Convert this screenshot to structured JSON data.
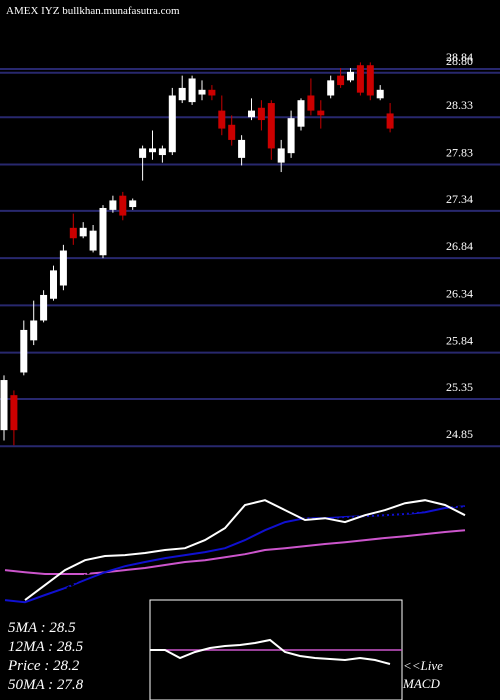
{
  "chart_data": [
    {
      "type": "candlestick",
      "title": "AMEX IYZ bullkhan.munafasutra.com",
      "up_color": "#ffffff",
      "down_color": "#cc0000",
      "grid": true,
      "grid_color": "#28286e",
      "ylim": [
        24.81,
        29.57
      ],
      "yticks": [
        24.85,
        25.35,
        25.84,
        26.34,
        26.84,
        27.34,
        27.83,
        28.33,
        28.84,
        {
          "value": 28.8,
          "label": "28.80"
        }
      ],
      "open": [
        25.02,
        25.39,
        25.63,
        25.97,
        26.18,
        26.41,
        26.55,
        27.16,
        27.07,
        26.92,
        26.87,
        27.35,
        27.5,
        27.38,
        27.9,
        27.96,
        27.93,
        27.96,
        28.51,
        28.49,
        28.57,
        28.62,
        28.4,
        28.25,
        27.9,
        28.33,
        28.43,
        28.48,
        27.85,
        27.95,
        28.23,
        28.56,
        28.4,
        28.56,
        28.77,
        28.72,
        28.88,
        28.88,
        28.53,
        28.37
      ],
      "high": [
        25.6,
        25.44,
        26.18,
        26.39,
        26.5,
        26.76,
        26.98,
        27.31,
        27.22,
        27.19,
        27.4,
        27.5,
        27.54,
        27.47,
        28.03,
        28.19,
        28.03,
        28.64,
        28.77,
        28.77,
        28.72,
        28.67,
        28.56,
        28.35,
        28.14,
        28.53,
        28.51,
        28.51,
        28.09,
        28.4,
        28.53,
        28.74,
        28.51,
        28.77,
        28.85,
        28.85,
        28.91,
        28.91,
        28.67,
        28.48
      ],
      "low": [
        24.91,
        24.86,
        25.6,
        25.92,
        26.16,
        26.39,
        26.5,
        26.98,
        27.05,
        26.9,
        26.84,
        27.32,
        27.24,
        27.35,
        27.66,
        27.88,
        27.85,
        27.93,
        28.48,
        28.46,
        28.51,
        28.51,
        28.14,
        28.03,
        27.82,
        28.3,
        28.19,
        27.88,
        27.75,
        27.9,
        28.19,
        28.35,
        28.21,
        28.53,
        28.64,
        28.7,
        28.56,
        28.51,
        28.51,
        28.17
      ],
      "close": [
        25.55,
        25.02,
        26.08,
        26.18,
        26.45,
        26.71,
        26.92,
        27.05,
        27.16,
        27.13,
        27.37,
        27.45,
        27.29,
        27.45,
        28.0,
        28.0,
        28.0,
        28.56,
        28.64,
        28.74,
        28.62,
        28.56,
        28.21,
        28.09,
        28.09,
        28.4,
        28.3,
        28.0,
        28.0,
        28.32,
        28.51,
        28.4,
        28.35,
        28.72,
        28.67,
        28.81,
        28.59,
        28.56,
        28.62,
        28.21
      ]
    },
    {
      "type": "line",
      "ylim": [
        24.87,
        28.87
      ],
      "series": [
        {
          "color": "#cc55cc",
          "values": [
            26.2,
            26.13,
            26.07,
            26.07,
            26.07,
            26.13,
            26.2,
            26.27,
            26.37,
            26.47,
            26.53,
            26.63,
            26.73,
            26.87,
            26.93,
            27.0,
            27.07,
            27.13,
            27.2,
            27.27,
            27.33,
            27.4,
            27.47,
            27.53
          ]
        },
        {
          "color": "#1010d0",
          "values": [
            25.2,
            25.13,
            25.37,
            25.6,
            25.87,
            26.13,
            26.33,
            26.47,
            26.6,
            26.7,
            26.8,
            26.93,
            27.2,
            27.53,
            27.8,
            27.93,
            27.93,
            27.97,
            28.0,
            28.03,
            28.07,
            28.13,
            28.27,
            28.33
          ]
        },
        {
          "color": "#000000",
          "dashed": true,
          "values": [
            null,
            null,
            25.2,
            25.53,
            26.03,
            26.47,
            26.67,
            26.8,
            26.93,
            27.03,
            27.2,
            27.53,
            28.03,
            28.37,
            28.13,
            27.93,
            27.87,
            27.93,
            28.0,
            28.03,
            28.07,
            28.2,
            28.37,
            28.27
          ]
        },
        {
          "color": "#ffffff",
          "values": [
            null,
            25.2,
            25.7,
            26.2,
            26.53,
            26.67,
            26.7,
            26.77,
            26.87,
            26.93,
            27.2,
            27.6,
            28.37,
            28.53,
            28.2,
            27.87,
            27.93,
            27.8,
            28.03,
            28.2,
            28.43,
            28.53,
            28.37,
            28.03
          ]
        }
      ]
    },
    {
      "type": "macd",
      "ylim": [
        -5,
        5
      ],
      "zero_color": "#cc55cc",
      "series": [
        {
          "color": "#ffffff",
          "values": [
            0,
            0,
            -0.8,
            -0.2,
            0.2,
            0.4,
            0.5,
            0.7,
            1.0,
            -0.2,
            -0.6,
            -0.8,
            -0.9,
            -1.0,
            -0.8,
            -1.0,
            -1.4
          ]
        }
      ]
    }
  ],
  "stats": [
    "5MA : 28.5",
    "12MA : 28.5",
    "Price  : 28.2",
    "50MA : 27.8"
  ],
  "macd_labels": [
    "<<Live",
    "MACD"
  ]
}
